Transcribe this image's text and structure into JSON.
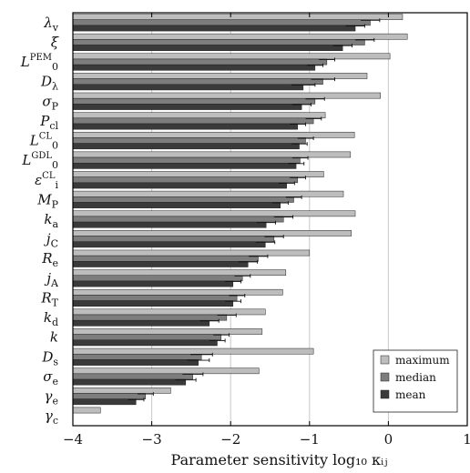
{
  "chart_data": {
    "type": "bar",
    "orientation": "horizontal",
    "xlabel": "Parameter sensitivity log₁₀ κᵢⱼ",
    "xlim": [
      -4,
      1
    ],
    "xticks": [
      -4,
      -3,
      -2,
      -1,
      0,
      1
    ],
    "xtick_labels": [
      "−4",
      "−3",
      "−2",
      "−1",
      "0",
      "1"
    ],
    "grid": "vertical",
    "legend_position": "bottom-right",
    "colors": {
      "maximum": "#bdbdbd",
      "median": "#7d7d7d",
      "mean": "#3a3a3a"
    },
    "categories": [
      {
        "base": "λ",
        "sub": "v",
        "sup": ""
      },
      {
        "base": "ξ",
        "sub": "",
        "sup": ""
      },
      {
        "base": "L",
        "sub": "0",
        "sup": "PEM"
      },
      {
        "base": "D",
        "sub": "λ",
        "sup": ""
      },
      {
        "base": "σ",
        "sub": "P",
        "sup": ""
      },
      {
        "base": "P",
        "sub": "cl",
        "sup": ""
      },
      {
        "base": "L",
        "sub": "0",
        "sup": "CL"
      },
      {
        "base": "L",
        "sub": "0",
        "sup": "GDL"
      },
      {
        "base": "ε",
        "sub": "i",
        "sup": "CL"
      },
      {
        "base": "M",
        "sub": "P",
        "sup": ""
      },
      {
        "base": "k",
        "sub": "a",
        "sup": ""
      },
      {
        "base": "j",
        "sub": "C",
        "sup": ""
      },
      {
        "base": "R",
        "sub": "e",
        "sup": ""
      },
      {
        "base": "j",
        "sub": "A",
        "sup": ""
      },
      {
        "base": "R",
        "sub": "T",
        "sup": ""
      },
      {
        "base": "k",
        "sub": "d",
        "sup": ""
      },
      {
        "base": "k",
        "sub": "",
        "sup": ""
      },
      {
        "base": "D",
        "sub": "s",
        "sup": ""
      },
      {
        "base": "σ",
        "sub": "e",
        "sup": ""
      },
      {
        "base": "γ",
        "sub": "e",
        "sup": ""
      },
      {
        "base": "γ",
        "sub": "c",
        "sup": ""
      }
    ],
    "series": [
      {
        "name": "maximum",
        "values": [
          0.18,
          0.24,
          0.02,
          -0.27,
          -0.1,
          -0.8,
          -0.43,
          -0.48,
          -0.82,
          -0.57,
          -0.42,
          -0.47,
          -1.0,
          -1.3,
          -1.34,
          -1.56,
          -1.6,
          -0.95,
          -1.64,
          -2.76,
          -3.65
        ]
      },
      {
        "name": "median",
        "values": [
          -0.23,
          -0.3,
          -0.78,
          -0.83,
          -0.93,
          -0.95,
          -1.05,
          -1.12,
          -1.15,
          -1.2,
          -1.33,
          -1.45,
          -1.65,
          -1.85,
          -1.92,
          -2.05,
          -2.12,
          -2.37,
          -2.48,
          -3.08,
          null
        ]
      },
      {
        "name": "mean",
        "values": [
          -0.42,
          -0.58,
          -0.93,
          -1.08,
          -1.1,
          -1.15,
          -1.13,
          -1.17,
          -1.29,
          -1.37,
          -1.55,
          -1.56,
          -1.78,
          -1.97,
          -1.97,
          -2.27,
          -2.17,
          -2.41,
          -2.57,
          -3.2,
          null
        ]
      }
    ],
    "error_bars": {
      "median": [
        0.12,
        0.12,
        0.1,
        0.15,
        0.12,
        0.1,
        0.1,
        0.1,
        0.1,
        0.1,
        0.12,
        0.12,
        0.12,
        0.1,
        0.1,
        0.12,
        0.1,
        0.14,
        0.13,
        0.1,
        null
      ]
    }
  },
  "legend": {
    "items": [
      {
        "label": "maximum",
        "color": "#bdbdbd"
      },
      {
        "label": "median",
        "color": "#7d7d7d"
      },
      {
        "label": "mean",
        "color": "#3a3a3a"
      }
    ]
  }
}
